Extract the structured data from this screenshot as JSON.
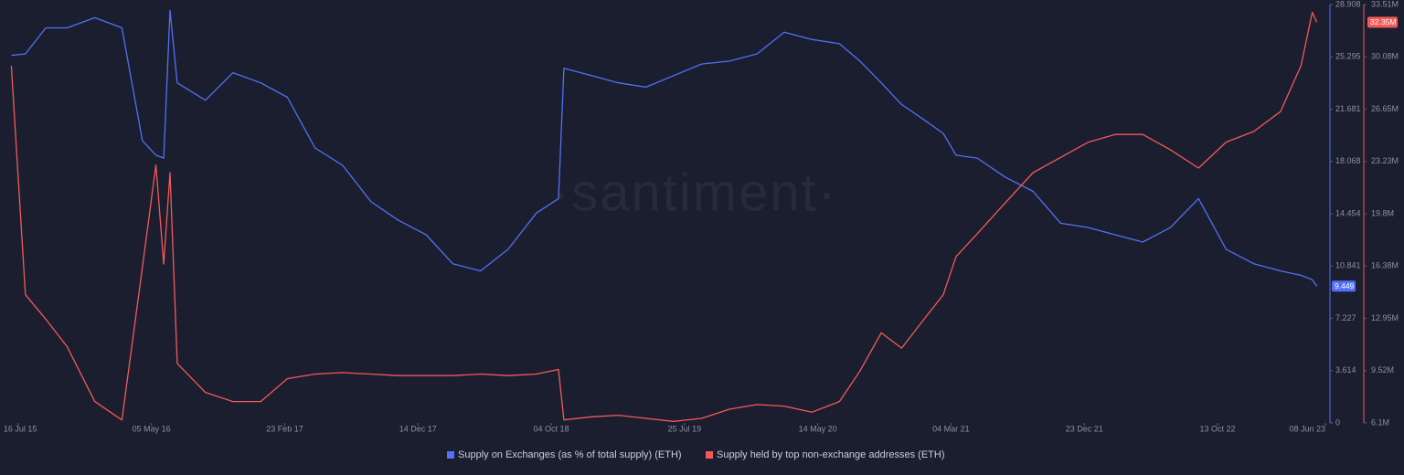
{
  "chart_data": {
    "type": "line",
    "watermark": "·santiment·",
    "xlim": [
      "2015-06-16",
      "2023-06-18"
    ],
    "xticks": [
      {
        "value": "2015-07-16",
        "label": "16 Jul 15"
      },
      {
        "value": "2016-05-05",
        "label": "05 May 16"
      },
      {
        "value": "2017-02-23",
        "label": "23 Feb 17"
      },
      {
        "value": "2017-12-14",
        "label": "14 Dec 17"
      },
      {
        "value": "2018-10-04",
        "label": "04 Oct 18"
      },
      {
        "value": "2019-07-25",
        "label": "25 Jul 19"
      },
      {
        "value": "2020-05-14",
        "label": "14 May 20"
      },
      {
        "value": "2021-03-04",
        "label": "04 Mar 21"
      },
      {
        "value": "2021-12-23",
        "label": "23 Dec 21"
      },
      {
        "value": "2022-10-13",
        "label": "13 Oct 22"
      },
      {
        "value": "2023-06-08",
        "label": "08 Jun 23"
      }
    ],
    "ylim": [
      0,
      28.908
    ],
    "yticks": [
      0,
      3.614,
      7.227,
      10.841,
      14.454,
      18.068,
      21.681,
      25.295,
      28.908
    ],
    "y2lim": [
      6.1,
      33.51
    ],
    "y2ticks": [
      {
        "value": 6.1,
        "label": "6.1M"
      },
      {
        "value": 9.52,
        "label": "9.52M"
      },
      {
        "value": 12.95,
        "label": "12.95M"
      },
      {
        "value": 16.38,
        "label": "16.38M"
      },
      {
        "value": 19.8,
        "label": "19.8M"
      },
      {
        "value": 23.23,
        "label": "23.23M"
      },
      {
        "value": 26.65,
        "label": "26.65M"
      },
      {
        "value": 30.08,
        "label": "30.08M"
      },
      {
        "value": 33.51,
        "label": "33.51M"
      }
    ],
    "x": [
      "2015-07-01",
      "2015-08-01",
      "2015-09-15",
      "2015-11-01",
      "2016-01-01",
      "2016-03-01",
      "2016-04-15",
      "2016-05-15",
      "2016-06-01",
      "2016-06-15",
      "2016-07-01",
      "2016-09-01",
      "2016-11-01",
      "2017-01-01",
      "2017-03-01",
      "2017-05-01",
      "2017-07-01",
      "2017-09-01",
      "2017-11-01",
      "2018-01-01",
      "2018-03-01",
      "2018-05-01",
      "2018-07-01",
      "2018-09-01",
      "2018-10-20",
      "2018-11-01",
      "2019-01-01",
      "2019-03-01",
      "2019-05-01",
      "2019-07-01",
      "2019-09-01",
      "2019-11-01",
      "2020-01-01",
      "2020-03-01",
      "2020-05-01",
      "2020-07-01",
      "2020-08-15",
      "2020-10-01",
      "2020-11-15",
      "2021-01-01",
      "2021-02-15",
      "2021-03-15",
      "2021-05-01",
      "2021-07-01",
      "2021-09-01",
      "2021-11-01",
      "2022-01-01",
      "2022-03-01",
      "2022-05-01",
      "2022-07-01",
      "2022-09-01",
      "2022-11-01",
      "2023-01-01",
      "2023-03-01",
      "2023-04-15",
      "2023-05-10",
      "2023-05-20"
    ],
    "series": [
      {
        "name": "Supply on Exchanges (as % of total supply) (ETH)",
        "color": "#5271f5",
        "values": [
          25.4,
          25.5,
          27.3,
          27.3,
          28.0,
          27.3,
          19.5,
          18.5,
          18.3,
          28.5,
          23.5,
          22.3,
          24.2,
          23.5,
          22.5,
          19.0,
          17.8,
          15.3,
          14.0,
          13.0,
          11.0,
          10.5,
          12.0,
          14.5,
          15.5,
          24.5,
          24.0,
          23.5,
          23.2,
          24.0,
          24.8,
          25.0,
          25.5,
          27.0,
          26.5,
          26.2,
          25.0,
          23.5,
          22.0,
          21.0,
          20.0,
          18.5,
          18.3,
          17.0,
          16.0,
          13.8,
          13.5,
          13.0,
          12.5,
          13.5,
          15.5,
          12.0,
          11.0,
          10.5,
          10.2,
          9.9,
          9.449
        ]
      },
      {
        "name": "Supply held by top non-exchange addresses (ETH)",
        "color": "#f25a5a",
        "axis": "y2",
        "values": [
          29.5,
          14.5,
          12.9,
          11.1,
          7.5,
          6.3,
          16.3,
          23.0,
          16.5,
          22.5,
          10.0,
          8.1,
          7.5,
          7.5,
          9.0,
          9.3,
          9.4,
          9.3,
          9.2,
          9.2,
          9.2,
          9.3,
          9.2,
          9.3,
          9.6,
          6.3,
          6.5,
          6.6,
          6.4,
          6.2,
          6.4,
          7.0,
          7.3,
          7.2,
          6.8,
          7.5,
          9.5,
          12.0,
          11.0,
          12.8,
          14.5,
          17.0,
          18.5,
          20.5,
          22.5,
          23.5,
          24.5,
          25.0,
          25.0,
          24.0,
          22.8,
          24.5,
          25.2,
          26.5,
          29.5,
          33.0,
          32.35
        ],
        "value_labels": [
          null,
          null,
          null,
          null,
          null,
          null,
          null,
          null,
          null,
          null,
          null,
          null,
          null,
          null,
          null,
          null,
          null,
          null,
          null,
          null,
          null,
          null,
          null,
          null,
          null,
          null,
          null,
          null,
          null,
          null,
          null,
          null,
          null,
          null,
          null,
          null,
          null,
          null,
          null,
          null,
          null,
          null,
          null,
          null,
          null,
          null,
          null,
          null,
          null,
          null,
          null,
          null,
          null,
          null,
          null,
          null,
          "32.35M"
        ]
      }
    ]
  }
}
